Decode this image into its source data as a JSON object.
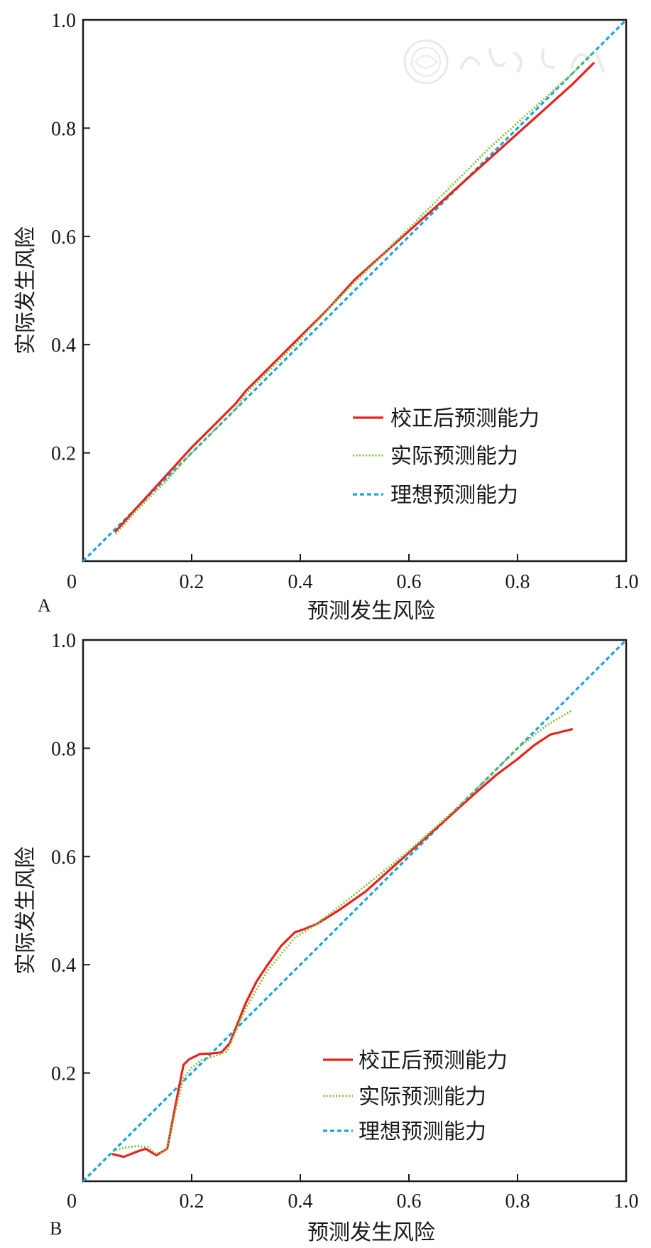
{
  "chart_data": [
    {
      "type": "line",
      "panel_label": "A",
      "xlabel": "预测发生风险",
      "ylabel": "实际发生风险",
      "xlim": [
        0,
        1
      ],
      "ylim": [
        0,
        1
      ],
      "xticks": [
        "0",
        "0.2",
        "0.4",
        "0.6",
        "0.8",
        "1.0"
      ],
      "yticks": [
        "0.2",
        "0.4",
        "0.6",
        "0.8",
        "1.0"
      ],
      "grid": false,
      "legend_position": "bottom-right",
      "series": [
        {
          "name": "校正后预测能力",
          "color": "#e8231c",
          "style": "solid",
          "x": [
            0.06,
            0.1,
            0.15,
            0.2,
            0.25,
            0.28,
            0.3,
            0.35,
            0.4,
            0.45,
            0.5,
            0.55,
            0.6,
            0.65,
            0.7,
            0.75,
            0.8,
            0.85,
            0.9,
            0.94
          ],
          "y": [
            0.055,
            0.1,
            0.155,
            0.21,
            0.26,
            0.29,
            0.315,
            0.365,
            0.415,
            0.465,
            0.52,
            0.565,
            0.61,
            0.655,
            0.7,
            0.745,
            0.79,
            0.835,
            0.88,
            0.92
          ]
        },
        {
          "name": "实际预测能力",
          "color": "#82c341",
          "style": "dotted",
          "x": [
            0.06,
            0.1,
            0.15,
            0.2,
            0.25,
            0.28,
            0.3,
            0.35,
            0.4,
            0.45,
            0.5,
            0.55,
            0.6,
            0.65,
            0.7,
            0.75,
            0.8,
            0.85,
            0.9,
            0.94
          ],
          "y": [
            0.05,
            0.095,
            0.145,
            0.2,
            0.25,
            0.28,
            0.31,
            0.36,
            0.41,
            0.465,
            0.515,
            0.565,
            0.615,
            0.665,
            0.715,
            0.765,
            0.81,
            0.855,
            0.9,
            0.94
          ]
        },
        {
          "name": "理想预测能力",
          "color": "#1aa3e0",
          "style": "dashed",
          "x": [
            0,
            1
          ],
          "y": [
            0,
            1
          ]
        }
      ]
    },
    {
      "type": "line",
      "panel_label": "B",
      "xlabel": "预测发生风险",
      "ylabel": "实际发生风险",
      "xlim": [
        0,
        1
      ],
      "ylim": [
        0,
        1
      ],
      "xticks": [
        "0",
        "0.2",
        "0.4",
        "0.6",
        "0.8",
        "1.0"
      ],
      "yticks": [
        "0.2",
        "0.4",
        "0.6",
        "0.8",
        "1.0"
      ],
      "grid": false,
      "legend_position": "bottom-right",
      "series": [
        {
          "name": "校正后预测能力",
          "color": "#e8231c",
          "style": "solid",
          "x": [
            0.055,
            0.075,
            0.1,
            0.115,
            0.135,
            0.155,
            0.17,
            0.185,
            0.195,
            0.215,
            0.235,
            0.255,
            0.27,
            0.3,
            0.32,
            0.34,
            0.365,
            0.39,
            0.405,
            0.43,
            0.47,
            0.52,
            0.57,
            0.62,
            0.67,
            0.72,
            0.76,
            0.8,
            0.83,
            0.86,
            0.88,
            0.9
          ],
          "y": [
            0.05,
            0.045,
            0.055,
            0.06,
            0.048,
            0.06,
            0.14,
            0.215,
            0.225,
            0.235,
            0.236,
            0.238,
            0.255,
            0.33,
            0.37,
            0.4,
            0.435,
            0.46,
            0.465,
            0.475,
            0.5,
            0.535,
            0.58,
            0.625,
            0.67,
            0.715,
            0.75,
            0.78,
            0.805,
            0.825,
            0.83,
            0.835
          ]
        },
        {
          "name": "实际预测能力",
          "color": "#82c341",
          "style": "dotted",
          "x": [
            0.055,
            0.075,
            0.1,
            0.12,
            0.135,
            0.155,
            0.17,
            0.185,
            0.2,
            0.22,
            0.245,
            0.265,
            0.3,
            0.34,
            0.39,
            0.43,
            0.5,
            0.6,
            0.7,
            0.8,
            0.85,
            0.9
          ],
          "y": [
            0.055,
            0.062,
            0.065,
            0.063,
            0.05,
            0.06,
            0.13,
            0.19,
            0.21,
            0.225,
            0.232,
            0.24,
            0.32,
            0.39,
            0.45,
            0.475,
            0.53,
            0.61,
            0.7,
            0.8,
            0.84,
            0.87
          ]
        },
        {
          "name": "理想预测能力",
          "color": "#1aa3e0",
          "style": "dashed",
          "x": [
            0,
            1
          ],
          "y": [
            0,
            1
          ]
        }
      ]
    }
  ]
}
